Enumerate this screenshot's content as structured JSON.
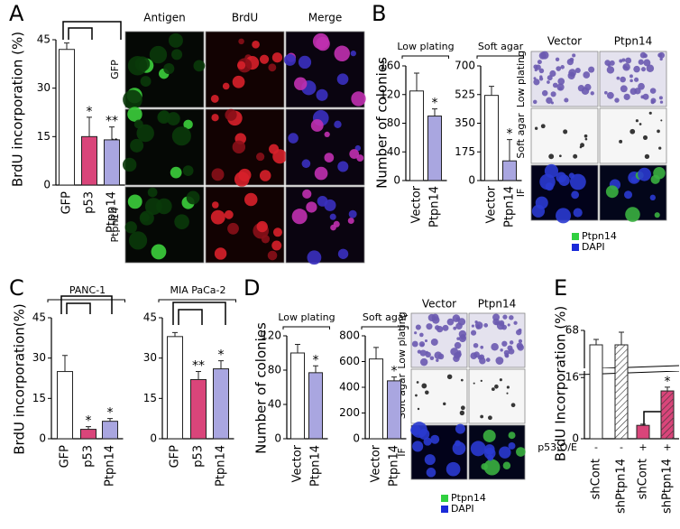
{
  "figure": {
    "panels": [
      "A",
      "B",
      "C",
      "D",
      "E"
    ],
    "panel_A_images": {
      "columns": [
        "Antigen",
        "BrdU",
        "Merge"
      ],
      "rows": [
        "GFP",
        "p53",
        "Ptpn14"
      ]
    },
    "panel_B_images": {
      "columns": [
        "Vector",
        "Ptpn14"
      ],
      "rows": [
        "Low plating",
        "Soft agar",
        "IF"
      ],
      "legend": [
        "Ptpn14",
        "DAPI"
      ]
    },
    "panel_D_images": {
      "columns": [
        "Vector",
        "Ptpn14"
      ],
      "rows": [
        "Low plating",
        "Soft agar",
        "IF"
      ],
      "legend": [
        "Ptpn14",
        "DAPI"
      ]
    }
  },
  "chart_data": [
    {
      "type": "bar",
      "ylabel": "BrdU incorporation (%)",
      "categories": [
        "GFP",
        "p53",
        "Ptpn14"
      ],
      "values": [
        42,
        15,
        14
      ],
      "errors": [
        2,
        6,
        4
      ],
      "significance": [
        null,
        "*",
        "**"
      ],
      "colors": [
        "#ffffff",
        "#d9457a",
        "#a9a6e0"
      ],
      "ylim": [
        0,
        45
      ],
      "yticks": [
        0,
        15,
        30,
        45
      ]
    },
    {
      "type": "bar",
      "title": "Low plating",
      "ylabel": "Number of colonies",
      "categories": [
        "Vector",
        "Ptpn14"
      ],
      "values": [
        125,
        90
      ],
      "errors": [
        25,
        10
      ],
      "significance": [
        null,
        "*"
      ],
      "colors": [
        "#ffffff",
        "#a9a6e0"
      ],
      "ylim": [
        0,
        160
      ],
      "yticks": [
        0,
        40,
        80,
        120,
        160
      ]
    },
    {
      "type": "bar",
      "title": "Soft agar",
      "categories": [
        "Vector",
        "Ptpn14"
      ],
      "values": [
        520,
        120
      ],
      "errors": [
        55,
        130
      ],
      "significance": [
        null,
        "*"
      ],
      "colors": [
        "#ffffff",
        "#a9a6e0"
      ],
      "ylim": [
        0,
        700
      ],
      "yticks": [
        0,
        175,
        350,
        525,
        700
      ]
    },
    {
      "type": "bar",
      "title": "PANC-1",
      "ylabel": "BrdU incorporation(%)",
      "categories": [
        "GFP",
        "p53",
        "Ptpn14"
      ],
      "values": [
        25,
        3.5,
        6.5
      ],
      "errors": [
        6,
        1,
        1
      ],
      "significance": [
        null,
        "*",
        "*"
      ],
      "colors": [
        "#ffffff",
        "#d9457a",
        "#a9a6e0"
      ],
      "ylim": [
        0,
        45
      ],
      "yticks": [
        0,
        15,
        30,
        45
      ]
    },
    {
      "type": "bar",
      "title": "MIA PaCa-2",
      "categories": [
        "GFP",
        "p53",
        "Ptpn14"
      ],
      "values": [
        38,
        22,
        26
      ],
      "errors": [
        1.5,
        3,
        3
      ],
      "significance": [
        null,
        "**",
        "*"
      ],
      "colors": [
        "#ffffff",
        "#d9457a",
        "#a9a6e0"
      ],
      "ylim": [
        0,
        45
      ],
      "yticks": [
        0,
        15,
        30,
        45
      ]
    },
    {
      "type": "bar",
      "title": "Low plating",
      "ylabel": "Number of colonies",
      "categories": [
        "Vector",
        "Ptpn14"
      ],
      "values": [
        100,
        77
      ],
      "errors": [
        10,
        8
      ],
      "significance": [
        null,
        "*"
      ],
      "colors": [
        "#ffffff",
        "#a9a6e0"
      ],
      "ylim": [
        0,
        120
      ],
      "yticks": [
        0,
        40,
        80,
        120
      ]
    },
    {
      "type": "bar",
      "title": "Soft agar",
      "categories": [
        "Vector",
        "Ptpn14"
      ],
      "values": [
        620,
        450
      ],
      "errors": [
        90,
        30
      ],
      "significance": [
        null,
        "*"
      ],
      "colors": [
        "#ffffff",
        "#a9a6e0"
      ],
      "ylim": [
        0,
        800
      ],
      "yticks": [
        0,
        200,
        400,
        600,
        800
      ]
    },
    {
      "type": "bar",
      "ylabel": "BrdU Incorporation (%)",
      "categories": [
        "shCont",
        "shPtpn14",
        "shCont",
        "shPtpn14"
      ],
      "values": [
        60,
        60,
        3.5,
        12.5
      ],
      "errors": [
        3,
        7,
        0.3,
        1
      ],
      "significance": [
        null,
        null,
        null,
        "*"
      ],
      "colors": [
        "#ffffff",
        "#ffffff",
        "#d9457a",
        "#d9457a"
      ],
      "hatch": [
        false,
        true,
        false,
        true
      ],
      "condition_label": "p53 O/E",
      "conditions": [
        "-",
        "-",
        "+",
        "+"
      ],
      "ylim": [
        0,
        68
      ],
      "yticks": [
        0,
        16,
        68
      ],
      "axis_break": [
        17,
        48
      ]
    }
  ]
}
